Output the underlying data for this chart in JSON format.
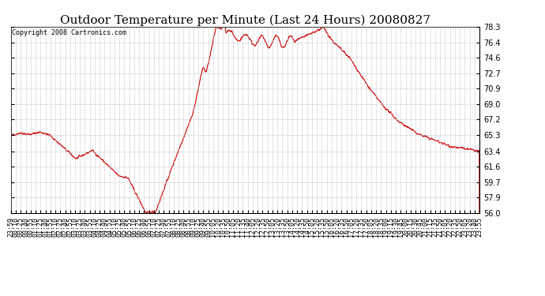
{
  "title": "Outdoor Temperature per Minute (Last 24 Hours) 20080827",
  "copyright": "Copyright 2008 Cartronics.com",
  "line_color": "#cc0000",
  "background_color": "#ffffff",
  "plot_bg_color": "#ffffff",
  "grid_color": "#bbbbbb",
  "ylim": [
    56.0,
    78.3
  ],
  "yticks": [
    56.0,
    57.9,
    59.7,
    61.6,
    63.4,
    65.3,
    67.2,
    69.0,
    70.9,
    72.7,
    74.6,
    76.4,
    78.3
  ],
  "xtick_labels": [
    "23:59",
    "00:10",
    "00:25",
    "00:40",
    "00:55",
    "01:10",
    "01:25",
    "01:40",
    "01:55",
    "02:10",
    "02:25",
    "02:40",
    "02:55",
    "03:10",
    "03:25",
    "03:40",
    "03:55",
    "04:10",
    "04:25",
    "04:40",
    "04:55",
    "05:10",
    "05:25",
    "05:40",
    "05:55",
    "06:10",
    "06:25",
    "06:40",
    "06:55",
    "07:10",
    "07:25",
    "07:40",
    "07:55",
    "08:10",
    "08:25",
    "08:40",
    "08:55",
    "09:10",
    "09:25",
    "09:40",
    "09:55",
    "10:05",
    "10:20",
    "10:35",
    "10:50",
    "11:05",
    "11:20",
    "11:35",
    "11:40",
    "12:05",
    "12:20",
    "12:35",
    "12:50",
    "13:05",
    "13:20",
    "13:35",
    "13:50",
    "14:05",
    "14:20",
    "14:35",
    "14:50",
    "15:05",
    "15:20",
    "15:35",
    "15:50",
    "16:05",
    "16:20",
    "16:35",
    "16:50",
    "17:05",
    "17:20",
    "17:35",
    "17:50",
    "18:05",
    "18:20",
    "18:35",
    "19:00",
    "19:15",
    "19:30",
    "19:45",
    "20:00",
    "20:15",
    "20:30",
    "20:45",
    "21:00",
    "21:15",
    "21:35",
    "21:50",
    "22:05",
    "22:20",
    "22:35",
    "22:50",
    "23:05",
    "23:20",
    "23:40",
    "23:55"
  ],
  "title_fontsize": 11,
  "copyright_fontsize": 6,
  "tick_fontsize": 6,
  "ytick_fontsize": 7,
  "line_width": 0.8
}
